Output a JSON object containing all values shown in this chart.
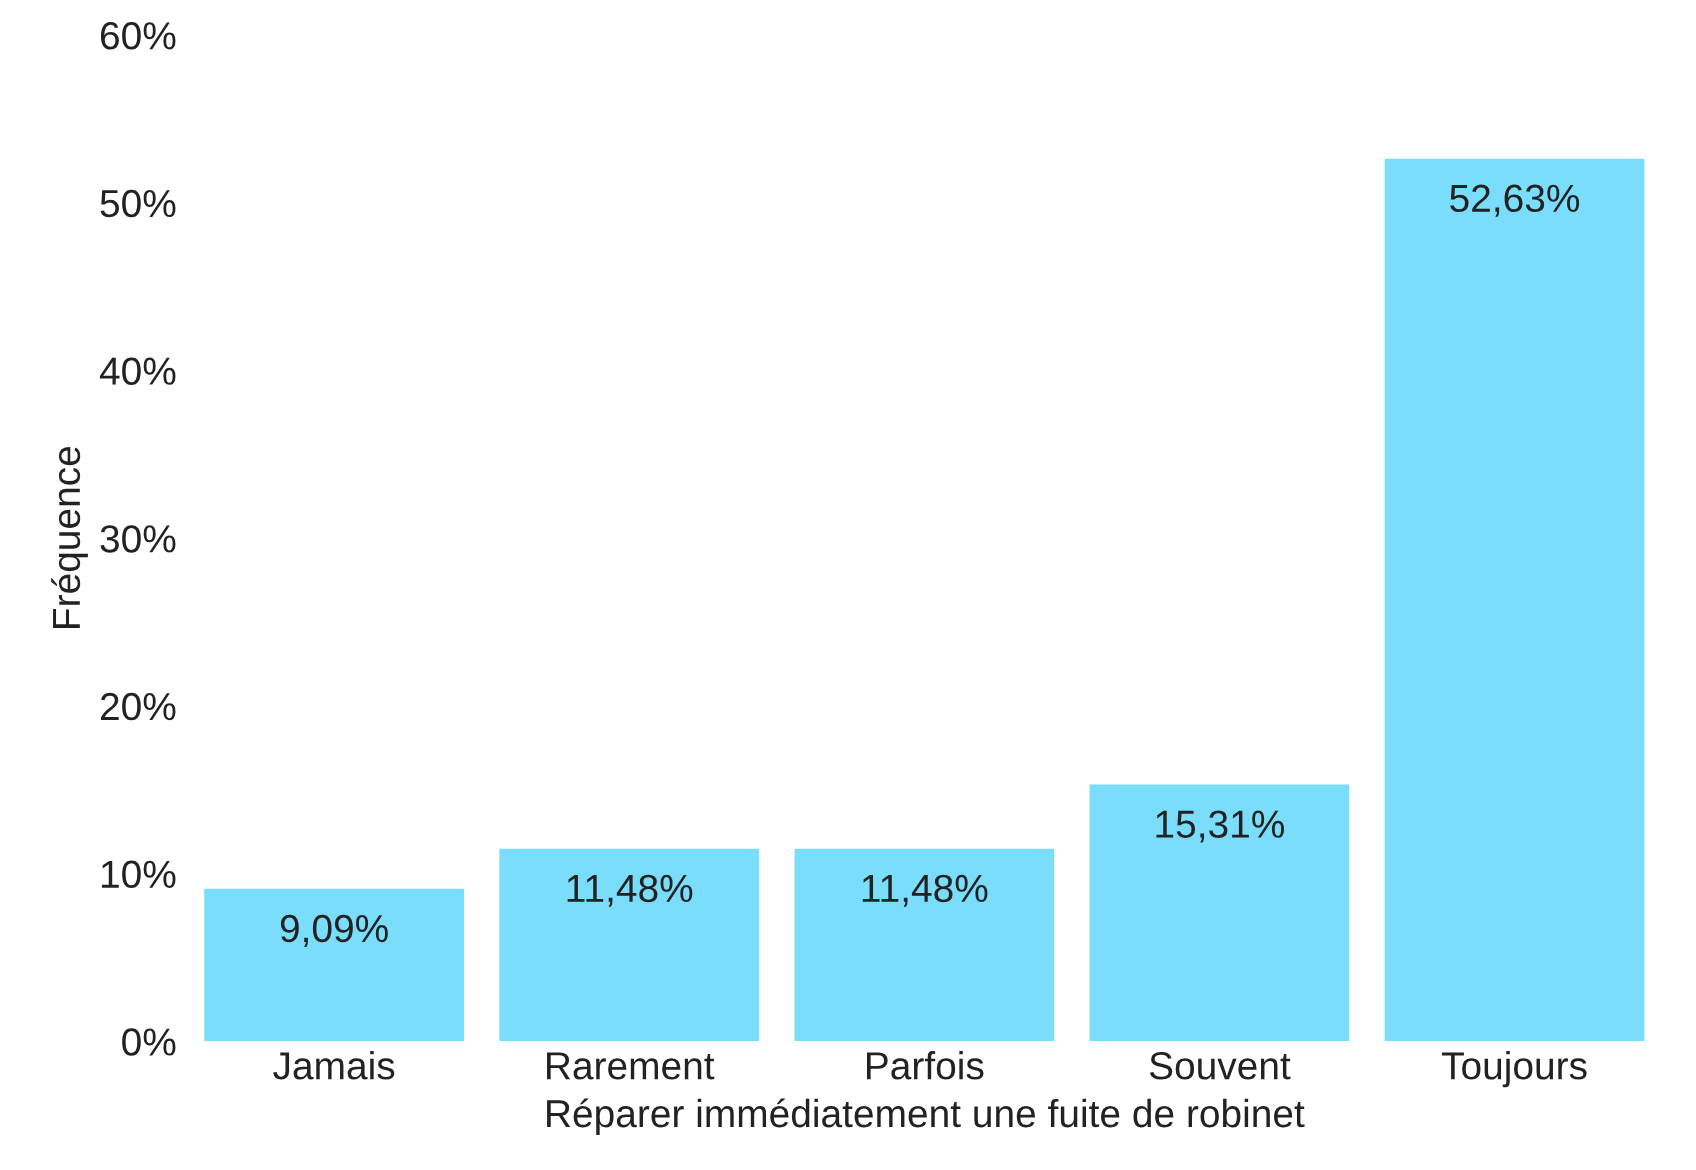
{
  "chart_data": {
    "type": "bar",
    "xlabel": "Réparer immédiatement une fuite de robinet",
    "ylabel": "Fréquence",
    "categories": [
      "Jamais",
      "Rarement",
      "Parfois",
      "Souvent",
      "Toujours"
    ],
    "values": [
      9.09,
      11.48,
      11.48,
      15.31,
      52.63
    ],
    "value_labels": [
      "9,09%",
      "11,48%",
      "11,48%",
      "15,31%",
      "52,63%"
    ],
    "color": "#79ddfb",
    "ylim": [
      0,
      60
    ],
    "yticks": [
      {
        "value": 0,
        "label": "0%"
      },
      {
        "value": 10,
        "label": "10%"
      },
      {
        "value": 20,
        "label": "20%"
      },
      {
        "value": 30,
        "label": "30%"
      },
      {
        "value": 40,
        "label": "40%"
      },
      {
        "value": 50,
        "label": "50%"
      },
      {
        "value": 60,
        "label": "60%"
      }
    ],
    "grid": false,
    "legend": false
  }
}
